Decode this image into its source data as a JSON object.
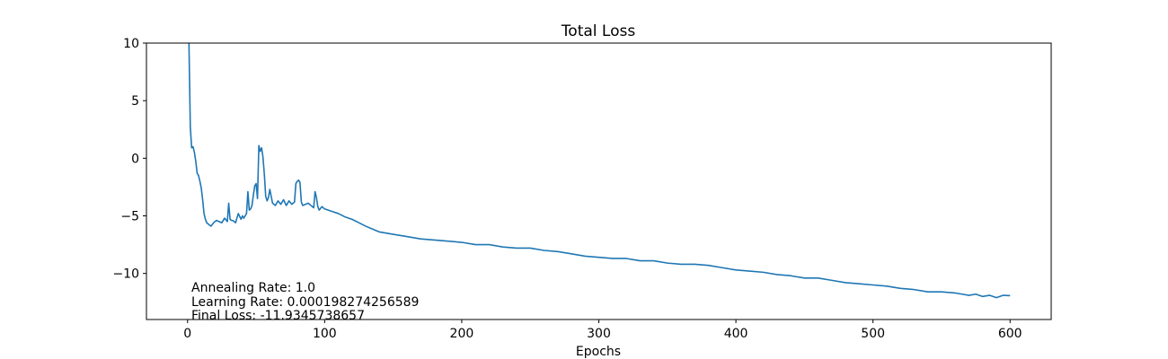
{
  "chart_data": {
    "type": "line",
    "title": "Total Loss",
    "xlabel": "Epochs",
    "ylabel": "",
    "xlim": [
      -30,
      630
    ],
    "ylim": [
      -14,
      10
    ],
    "xticks": [
      0,
      100,
      200,
      300,
      400,
      500,
      600
    ],
    "yticks": [
      -10,
      -5,
      0,
      5,
      10
    ],
    "xtick_labels": [
      "0",
      "100",
      "200",
      "300",
      "400",
      "500",
      "600"
    ],
    "ytick_labels": [
      "−10",
      "−5",
      "0",
      "5",
      "10"
    ],
    "grid": false,
    "line_color": "#1f77b4",
    "series": [
      {
        "name": "Total Loss",
        "x": [
          0,
          1,
          2,
          3,
          4,
          5,
          6,
          7,
          8,
          9,
          10,
          11,
          12,
          13,
          14,
          15,
          17,
          19,
          21,
          23,
          25,
          27,
          29,
          30,
          31,
          32,
          33,
          35,
          37,
          39,
          40,
          41,
          42,
          43,
          44,
          45,
          46,
          47,
          48,
          49,
          50,
          51,
          52,
          53,
          54,
          55,
          56,
          57,
          58,
          59,
          60,
          62,
          64,
          66,
          68,
          70,
          72,
          74,
          76,
          78,
          79,
          80,
          81,
          82,
          83,
          84,
          86,
          88,
          90,
          92,
          93,
          94,
          95,
          96,
          98,
          100,
          105,
          110,
          115,
          120,
          125,
          130,
          140,
          150,
          160,
          170,
          180,
          190,
          200,
          210,
          220,
          230,
          240,
          250,
          260,
          270,
          280,
          290,
          300,
          310,
          320,
          330,
          340,
          350,
          360,
          370,
          380,
          390,
          400,
          410,
          420,
          430,
          440,
          450,
          460,
          470,
          480,
          490,
          500,
          510,
          520,
          530,
          540,
          550,
          560,
          565,
          570,
          575,
          580,
          585,
          590,
          595,
          600
        ],
        "values": [
          20,
          10,
          2.7,
          0.9,
          1.0,
          0.5,
          -0.3,
          -1.3,
          -1.5,
          -2.0,
          -2.6,
          -3.6,
          -4.8,
          -5.3,
          -5.6,
          -5.7,
          -5.9,
          -5.6,
          -5.4,
          -5.5,
          -5.6,
          -5.2,
          -5.5,
          -3.9,
          -5.3,
          -5.4,
          -5.4,
          -5.6,
          -4.8,
          -5.3,
          -5.0,
          -5.2,
          -5.0,
          -4.8,
          -2.9,
          -4.5,
          -4.4,
          -4.1,
          -3.2,
          -2.4,
          -2.2,
          -3.5,
          1.1,
          0.6,
          0.9,
          0.1,
          -1.4,
          -3.3,
          -3.7,
          -3.4,
          -2.7,
          -3.9,
          -4.1,
          -3.7,
          -4.0,
          -3.6,
          -4.1,
          -3.7,
          -4.0,
          -3.8,
          -2.2,
          -2.0,
          -1.9,
          -2.1,
          -3.8,
          -4.1,
          -4.0,
          -3.9,
          -4.1,
          -4.3,
          -2.9,
          -3.4,
          -4.2,
          -4.5,
          -4.2,
          -4.4,
          -4.6,
          -4.8,
          -5.1,
          -5.3,
          -5.6,
          -5.9,
          -6.4,
          -6.6,
          -6.8,
          -7.0,
          -7.1,
          -7.2,
          -7.3,
          -7.5,
          -7.5,
          -7.7,
          -7.8,
          -7.8,
          -8.0,
          -8.1,
          -8.3,
          -8.5,
          -8.6,
          -8.7,
          -8.7,
          -8.9,
          -8.9,
          -9.1,
          -9.2,
          -9.2,
          -9.3,
          -9.5,
          -9.7,
          -9.8,
          -9.9,
          -10.1,
          -10.2,
          -10.4,
          -10.4,
          -10.6,
          -10.8,
          -10.9,
          -11.0,
          -11.1,
          -11.3,
          -11.4,
          -11.6,
          -11.6,
          -11.7,
          -11.8,
          -11.9,
          -11.8,
          -12.0,
          -11.9,
          -12.1,
          -11.9,
          -11.93
        ]
      }
    ],
    "annotations": [
      "Annealing Rate: 1.0",
      "Learning Rate: 0.000198274256589",
      "Final Loss: -11.9345738657"
    ]
  }
}
